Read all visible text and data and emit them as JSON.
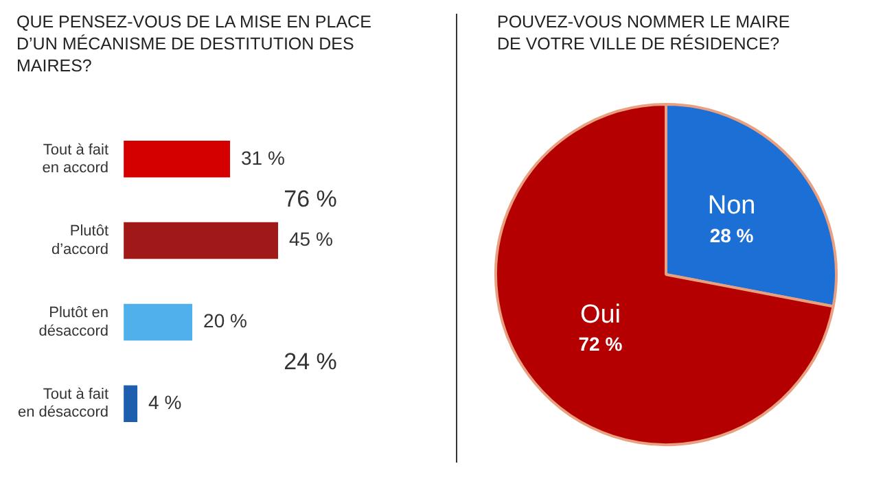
{
  "chart_data": [
    {
      "type": "bar",
      "orientation": "horizontal",
      "title": "QUE PENSEZ-VOUS DE LA MISE EN PLACE D’UN MÉCANISME DE DESTITUTION DES MAIRES?",
      "categories": [
        "Tout à fait en accord",
        "Plutôt d’accord",
        "Plutôt en désaccord",
        "Tout à fait en désaccord"
      ],
      "values": [
        31,
        45,
        20,
        4
      ],
      "colors": [
        "#d40000",
        "#a01818",
        "#4fb0ec",
        "#1d5fae"
      ],
      "value_labels": [
        "31 %",
        "45 %",
        "20 %",
        "4 %"
      ],
      "annotations": [
        "76 %",
        "24 %"
      ],
      "legend": false
    },
    {
      "type": "pie",
      "title": "POUVEZ-VOUS NOMMER LE MAIRE DE VOTRE VILLE DE RÉSIDENCE?",
      "categories": [
        "Non",
        "Oui"
      ],
      "values": [
        28,
        72
      ],
      "colors": [
        "#1c6fd4",
        "#b40000"
      ],
      "value_labels": [
        "28 %",
        "72 %"
      ],
      "legend": false
    }
  ]
}
